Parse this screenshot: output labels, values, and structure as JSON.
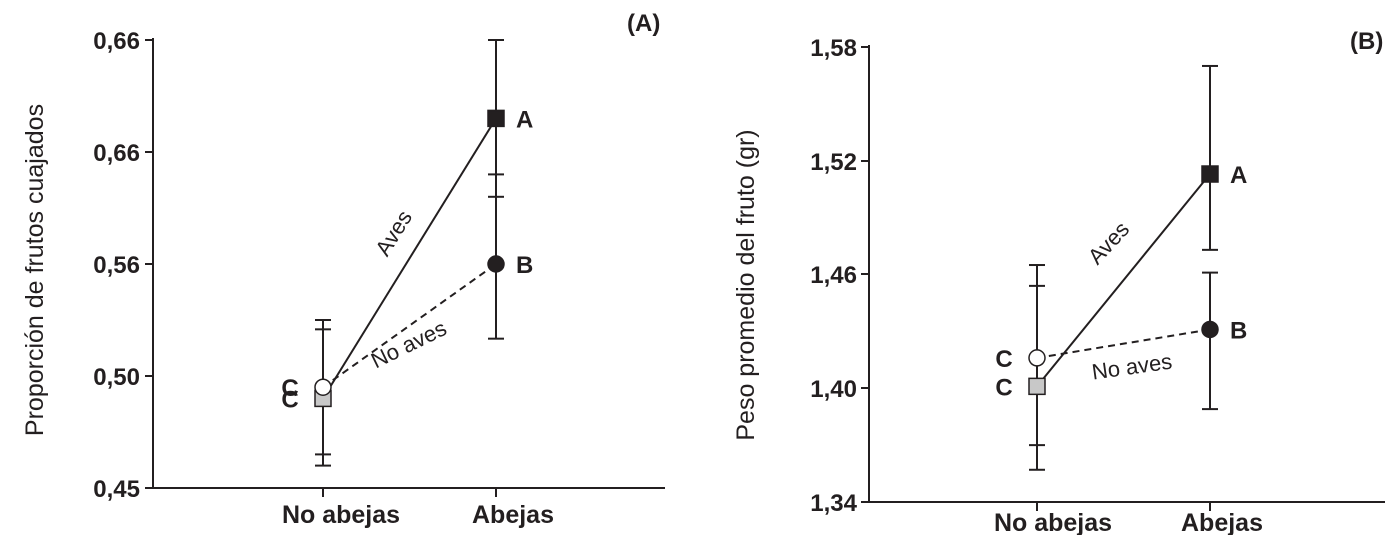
{
  "chart_data": [
    {
      "type": "line",
      "panel_label": "(A)",
      "ylabel": "Proporción de frutos cuajados",
      "categories": [
        "No abejas",
        "Abejas"
      ],
      "y_tick_labels": [
        "0,45",
        "0,50",
        "0,56",
        "0,66",
        "0,66"
      ],
      "series": [
        {
          "name": "Aves",
          "line_style": "solid",
          "marker": "square-filled",
          "values": [
            0.49,
            0.625
          ],
          "error_upper": [
            0.525,
            0.66
          ],
          "error_lower": [
            0.46,
            0.59
          ],
          "letters": [
            "C",
            "A"
          ]
        },
        {
          "name": "No aves",
          "line_style": "dashed",
          "marker": "circle",
          "marker_fill": [
            "open",
            "filled"
          ],
          "values": [
            0.495,
            0.56
          ],
          "error_upper": [
            0.53,
            0.6
          ],
          "error_lower": [
            0.465,
            0.52
          ],
          "letters": [
            "C",
            "B"
          ]
        }
      ]
    },
    {
      "type": "line",
      "panel_label": "(B)",
      "ylabel": "Peso promedio del fruto (gr)",
      "categories": [
        "No abejas",
        "Abejas"
      ],
      "y_tick_labels": [
        "1,34",
        "1,40",
        "1,46",
        "1,52",
        "1,58"
      ],
      "ylim": [
        1.34,
        1.58
      ],
      "series": [
        {
          "name": "Aves",
          "line_style": "solid",
          "marker": "square-filled",
          "values": [
            1.401,
            1.513
          ],
          "error_upper": [
            1.454,
            1.57
          ],
          "error_lower": [
            1.37,
            1.473
          ],
          "letters": [
            "C",
            "A"
          ]
        },
        {
          "name": "No aves",
          "line_style": "dashed",
          "marker": "circle",
          "marker_fill": [
            "open",
            "filled"
          ],
          "values": [
            1.416,
            1.431
          ],
          "error_upper": [
            1.465,
            1.461
          ],
          "error_lower": [
            1.357,
            1.389
          ],
          "letters": [
            "C",
            "B"
          ]
        }
      ]
    }
  ]
}
